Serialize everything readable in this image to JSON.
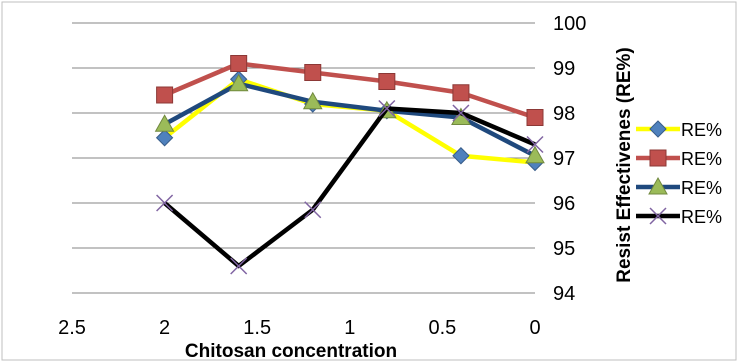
{
  "chart_data": {
    "type": "line",
    "xlabel": "Chitosan concentration",
    "ylabel": "Resist Effectivenes (RE%)",
    "xlim": [
      2.5,
      0
    ],
    "ylim": [
      94,
      100
    ],
    "x_ticks": [
      "2.5",
      "2",
      "1.5",
      "1",
      "0.5",
      "0"
    ],
    "y_ticks": [
      "94",
      "95",
      "96",
      "97",
      "98",
      "99",
      "100"
    ],
    "grid": "horizontal",
    "legend_position": "right",
    "x": [
      2,
      1.6,
      1.2,
      0.8,
      0.4,
      0
    ],
    "series": [
      {
        "name": "RE%",
        "color": "#ffff00",
        "marker": "diamond",
        "marker_color": "#4f81bd",
        "values": [
          97.45,
          98.75,
          98.2,
          98.05,
          97.05,
          96.9
        ]
      },
      {
        "name": "RE%",
        "color": "#c0504d",
        "marker": "square",
        "marker_color": "#c0504d",
        "values": [
          98.4,
          99.1,
          98.9,
          98.7,
          98.45,
          97.9
        ]
      },
      {
        "name": "RE%",
        "color": "#1f497d",
        "marker": "triangle",
        "marker_color": "#9bbb59",
        "values": [
          97.75,
          98.65,
          98.25,
          98.05,
          97.9,
          97.05
        ]
      },
      {
        "name": "RE%",
        "color": "#000000",
        "marker": "x",
        "marker_color": "#8064a2",
        "values": [
          96.0,
          94.6,
          95.85,
          98.1,
          98.0,
          97.3
        ]
      }
    ]
  }
}
